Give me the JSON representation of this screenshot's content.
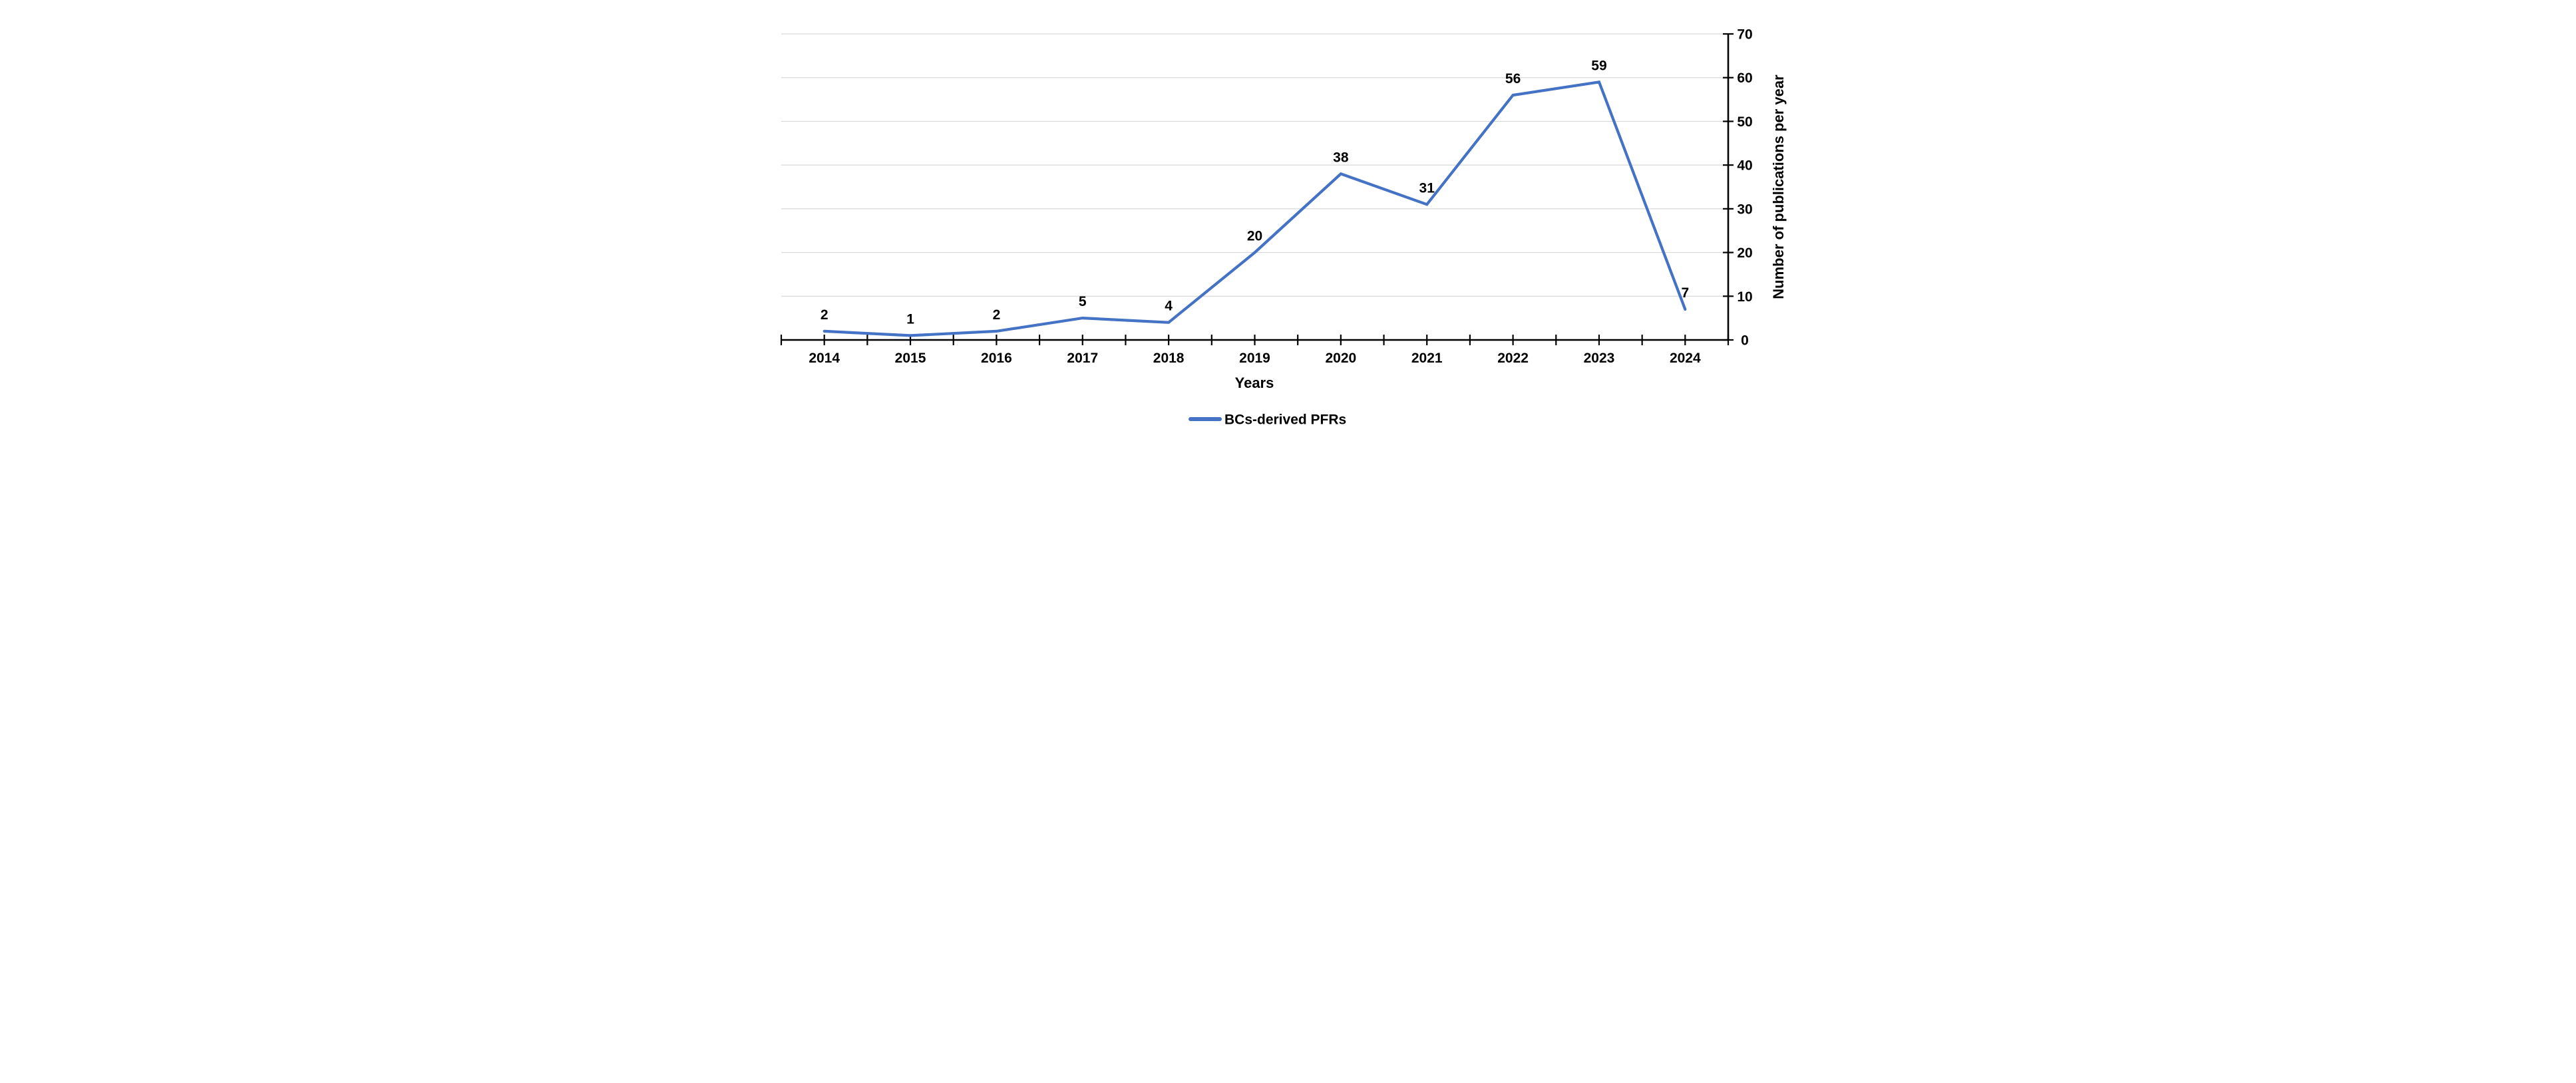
{
  "chart_data": {
    "type": "line",
    "title": "",
    "categories": [
      "2014",
      "2015",
      "2016",
      "2017",
      "2018",
      "2019",
      "2020",
      "2021",
      "2022",
      "2023",
      "2024"
    ],
    "series": [
      {
        "name": "BCs-derived PFRs",
        "values": [
          2,
          1,
          2,
          5,
          4,
          20,
          38,
          31,
          56,
          59,
          7
        ],
        "color": "#4472C4"
      }
    ],
    "data_labels": [
      "2",
      "1",
      "2",
      "5",
      "4",
      "20",
      "38",
      "31",
      "56",
      "59",
      "7"
    ],
    "xlabel": "Years",
    "ylabel": "Number of publications per year",
    "y_ticks": [
      0,
      10,
      20,
      30,
      40,
      50,
      60,
      70
    ],
    "ylim": [
      0,
      70
    ],
    "y_axis_side": "right",
    "grid": "horizontal",
    "legend_position": "bottom-center",
    "data_label_position": "above-points",
    "colors": {
      "line": "#4472C4",
      "gridline": "#D9D9D9",
      "axis": "#000000",
      "text": "#000000",
      "background": "#FFFFFF"
    }
  }
}
